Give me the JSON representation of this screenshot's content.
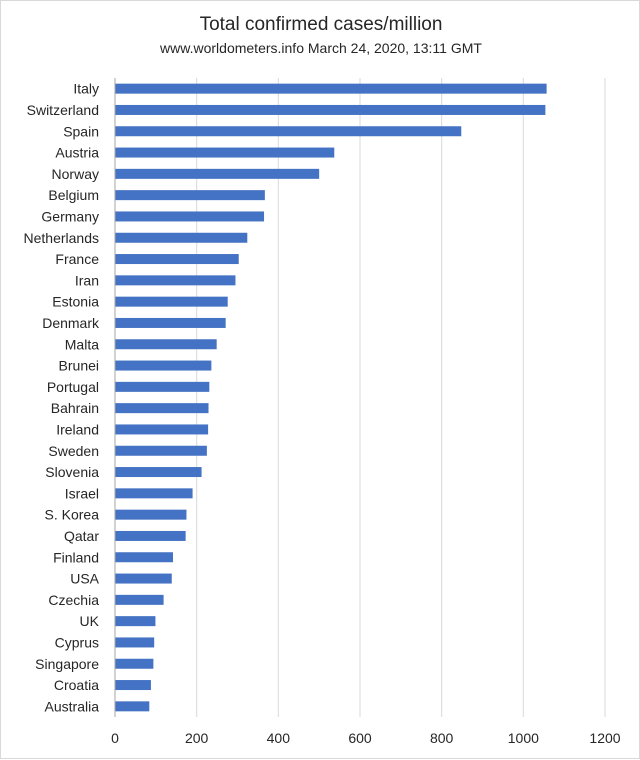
{
  "chart_data": {
    "type": "bar",
    "orientation": "horizontal",
    "title": "Total confirmed cases/million",
    "subtitle": "www.worldometers.info  March 24, 2020, 13:11 GMT",
    "xlabel": "",
    "ylabel": "",
    "xlim": [
      0,
      1200
    ],
    "xticks": [
      0,
      200,
      400,
      600,
      800,
      1000,
      1200
    ],
    "xtick_labels": [
      "0",
      "200",
      "400",
      "600",
      "800",
      "1000",
      "1200"
    ],
    "grid": "vertical",
    "bar_color": "#4472c4",
    "categories": [
      "Italy",
      "Switzerland",
      "Spain",
      "Austria",
      "Norway",
      "Belgium",
      "Germany",
      "Netherlands",
      "France",
      "Iran",
      "Estonia",
      "Denmark",
      "Malta",
      "Brunei",
      "Portugal",
      "Bahrain",
      "Ireland",
      "Sweden",
      "Slovenia",
      "Israel",
      "S. Korea",
      "Qatar",
      "Finland",
      "USA",
      "Czechia",
      "UK",
      "Cyprus",
      "Singapore",
      "Croatia",
      "Australia"
    ],
    "values": [
      1057,
      1054,
      848,
      537,
      500,
      367,
      365,
      324,
      303,
      295,
      276,
      271,
      249,
      236,
      231,
      229,
      228,
      225,
      212,
      190,
      175,
      173,
      142,
      139,
      119,
      99,
      96,
      94,
      88,
      84
    ]
  }
}
